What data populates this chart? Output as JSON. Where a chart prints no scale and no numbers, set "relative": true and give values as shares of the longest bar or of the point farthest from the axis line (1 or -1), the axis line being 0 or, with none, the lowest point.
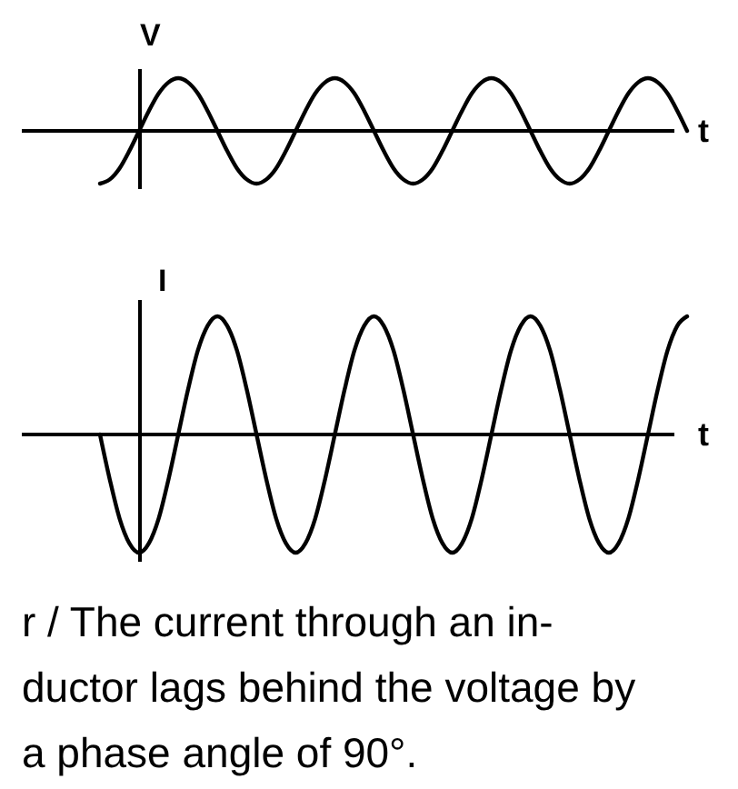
{
  "chart_data": [
    {
      "type": "line",
      "ylabel": "V",
      "xlabel": "t",
      "relative": true,
      "color": "#000000",
      "categories": [
        null,
        null,
        null,
        null,
        null,
        null,
        null,
        null,
        null,
        null,
        null,
        null,
        null,
        null,
        null,
        null,
        null,
        null,
        null,
        null,
        null,
        null,
        null,
        null,
        null,
        null,
        null,
        null,
        null,
        null,
        null,
        null,
        null,
        null,
        null,
        null,
        null,
        null,
        null,
        null,
        null,
        null,
        null,
        null,
        null,
        null,
        null,
        null,
        null,
        null,
        null,
        null,
        null,
        null,
        null,
        null,
        null,
        null,
        null,
        null,
        null
      ],
      "values": [
        -1,
        -0.92,
        -0.71,
        -0.38,
        0,
        0.38,
        0.71,
        0.92,
        1,
        0.92,
        0.71,
        0.38,
        0,
        -0.38,
        -0.71,
        -0.92,
        -1,
        -0.92,
        -0.71,
        -0.38,
        0,
        0.38,
        0.71,
        0.92,
        1,
        0.92,
        0.71,
        0.38,
        0,
        -0.38,
        -0.71,
        -0.92,
        -1,
        -0.92,
        -0.71,
        -0.38,
        0,
        0.38,
        0.71,
        0.92,
        1,
        0.92,
        0.71,
        0.38,
        0,
        -0.38,
        -0.71,
        -0.92,
        -1,
        -0.92,
        -0.71,
        -0.38,
        0,
        0.38,
        0.71,
        0.92,
        1,
        0.92,
        0.71,
        0.38,
        0
      ]
    },
    {
      "type": "line",
      "ylabel": "I",
      "xlabel": "t",
      "relative": true,
      "color": "#000000",
      "categories": [
        null,
        null,
        null,
        null,
        null,
        null,
        null,
        null,
        null,
        null,
        null,
        null,
        null,
        null,
        null,
        null,
        null,
        null,
        null,
        null,
        null,
        null,
        null,
        null,
        null,
        null,
        null,
        null,
        null,
        null,
        null,
        null,
        null,
        null,
        null,
        null,
        null,
        null,
        null,
        null,
        null,
        null,
        null,
        null,
        null,
        null,
        null,
        null,
        null,
        null,
        null,
        null,
        null,
        null,
        null,
        null,
        null,
        null,
        null,
        null,
        null
      ],
      "values": [
        0,
        -0.38,
        -0.71,
        -0.92,
        -1,
        -0.92,
        -0.71,
        -0.38,
        0,
        0.38,
        0.71,
        0.92,
        1,
        0.92,
        0.71,
        0.38,
        0,
        -0.38,
        -0.71,
        -0.92,
        -1,
        -0.92,
        -0.71,
        -0.38,
        0,
        0.38,
        0.71,
        0.92,
        1,
        0.92,
        0.71,
        0.38,
        0,
        -0.38,
        -0.71,
        -0.92,
        -1,
        -0.92,
        -0.71,
        -0.38,
        0,
        0.38,
        0.71,
        0.92,
        1,
        0.92,
        0.71,
        0.38,
        0,
        -0.38,
        -0.71,
        -0.92,
        -1,
        -0.92,
        -0.71,
        -0.38,
        0,
        0.38,
        0.71,
        0.92,
        1
      ],
      "annotations": [
        "r / The current through an in-\nductor lags behind the voltage by\na phase angle of 90°."
      ]
    }
  ]
}
